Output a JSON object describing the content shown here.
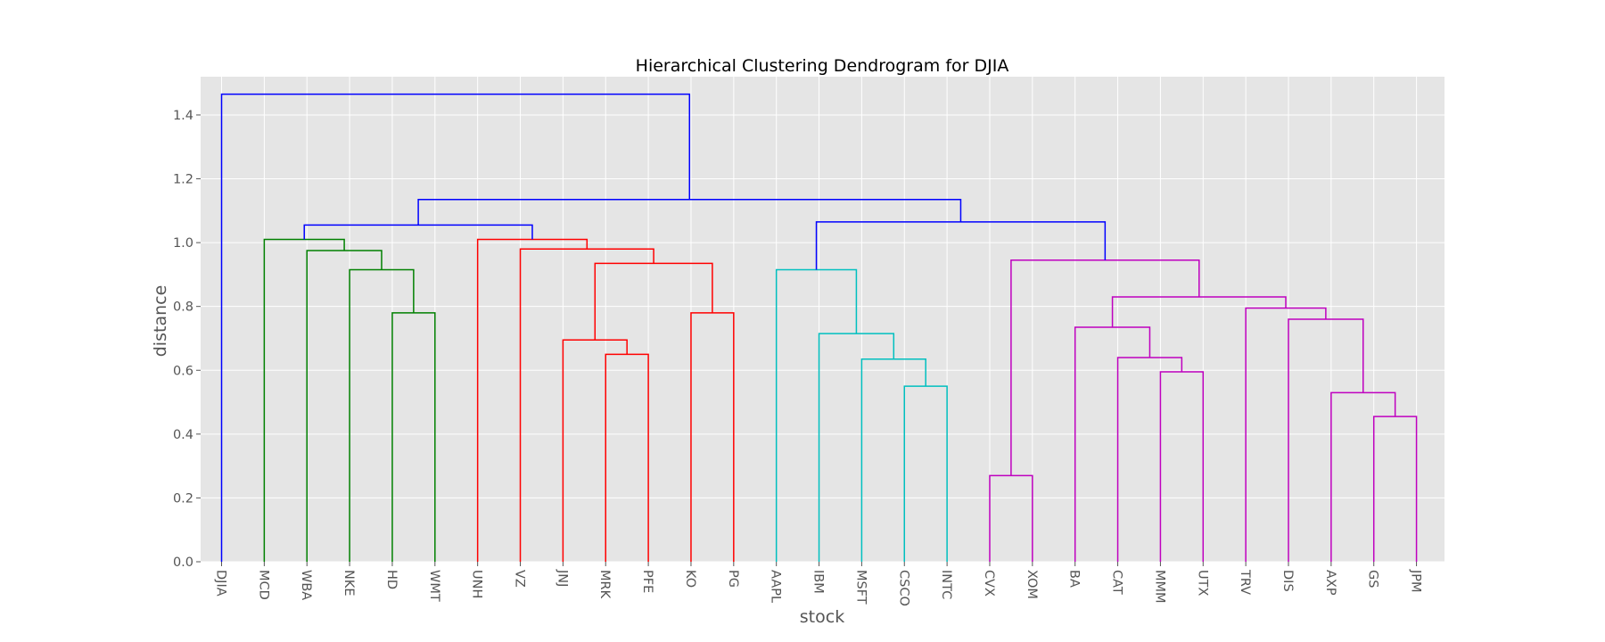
{
  "chart_data": {
    "type": "dendrogram",
    "title": "Hierarchical Clustering Dendrogram for DJIA",
    "xlabel": "stock",
    "ylabel": "distance",
    "ylim": [
      0,
      1.52
    ],
    "yticks": [
      "0.0",
      "0.2",
      "0.4",
      "0.6",
      "0.8",
      "1.0",
      "1.2",
      "1.4"
    ],
    "grid": true,
    "leaves": [
      "DJIA",
      "MCD",
      "WBA",
      "NKE",
      "HD",
      "WMT",
      "UNH",
      "VZ",
      "JNJ",
      "MRK",
      "PFE",
      "KO",
      "PG",
      "AAPL",
      "IBM",
      "MSFT",
      "CSCO",
      "INTC",
      "CVX",
      "XOM",
      "BA",
      "CAT",
      "MMM",
      "UTX",
      "TRV",
      "DIS",
      "AXP",
      "GS",
      "JPM"
    ],
    "colors": {
      "green": "#008000",
      "red": "#ff0000",
      "cyan": "#00bfbf",
      "magenta": "#bf00bf",
      "blue": "#0000ff",
      "plot_background": "#e5e5e5",
      "grid": "#ffffff"
    },
    "merges": [
      {
        "left": "HD",
        "right": "WMT",
        "height": 0.78,
        "color": "green"
      },
      {
        "left": "NKE",
        "right": "HD+WMT",
        "height": 0.915,
        "color": "green"
      },
      {
        "left": "WBA",
        "right": "NKE+HD+WMT",
        "height": 0.975,
        "color": "green"
      },
      {
        "left": "MCD",
        "right": "WBA+NKE+HD+WMT",
        "height": 1.01,
        "color": "green"
      },
      {
        "left": "MRK",
        "right": "PFE",
        "height": 0.65,
        "color": "red"
      },
      {
        "left": "JNJ",
        "right": "MRK+PFE",
        "height": 0.695,
        "color": "red"
      },
      {
        "left": "KO",
        "right": "PG",
        "height": 0.78,
        "color": "red"
      },
      {
        "left": "JNJ+MRK+PFE",
        "right": "KO+PG",
        "height": 0.935,
        "color": "red"
      },
      {
        "left": "VZ",
        "right": "JNJ+MRK+PFE+KO+PG",
        "height": 0.98,
        "color": "red"
      },
      {
        "left": "UNH",
        "right": "VZ+JNJ+MRK+PFE+KO+PG",
        "height": 1.01,
        "color": "red"
      },
      {
        "left": "CSCO",
        "right": "INTC",
        "height": 0.55,
        "color": "cyan"
      },
      {
        "left": "MSFT",
        "right": "CSCO+INTC",
        "height": 0.635,
        "color": "cyan"
      },
      {
        "left": "IBM",
        "right": "MSFT+CSCO+INTC",
        "height": 0.715,
        "color": "cyan"
      },
      {
        "left": "AAPL",
        "right": "IBM+MSFT+CSCO+INTC",
        "height": 0.915,
        "color": "cyan"
      },
      {
        "left": "CVX",
        "right": "XOM",
        "height": 0.27,
        "color": "magenta"
      },
      {
        "left": "MMM",
        "right": "UTX",
        "height": 0.595,
        "color": "magenta"
      },
      {
        "left": "CAT",
        "right": "MMM+UTX",
        "height": 0.64,
        "color": "magenta"
      },
      {
        "left": "BA",
        "right": "CAT+MMM+UTX",
        "height": 0.735,
        "color": "magenta"
      },
      {
        "left": "GS",
        "right": "JPM",
        "height": 0.455,
        "color": "magenta"
      },
      {
        "left": "AXP",
        "right": "GS+JPM",
        "height": 0.53,
        "color": "magenta"
      },
      {
        "left": "DIS",
        "right": "AXP+GS+JPM",
        "height": 0.76,
        "color": "magenta"
      },
      {
        "left": "TRV",
        "right": "DIS+AXP+GS+JPM",
        "height": 0.795,
        "color": "magenta"
      },
      {
        "left": "BA+CAT+MMM+UTX",
        "right": "TRV+DIS+AXP+GS+JPM",
        "height": 0.83,
        "color": "magenta"
      },
      {
        "left": "CVX+XOM",
        "right": "BA..JPM",
        "height": 0.945,
        "color": "magenta"
      },
      {
        "left": "MCD..WMT",
        "right": "UNH..PG",
        "height": 1.055,
        "color": "blue"
      },
      {
        "left": "AAPL..INTC",
        "right": "CVX..JPM",
        "height": 1.065,
        "color": "blue"
      },
      {
        "left": "MCD..PG",
        "right": "AAPL..JPM",
        "height": 1.135,
        "color": "blue"
      },
      {
        "left": "DJIA",
        "right": "MCD..JPM",
        "height": 1.465,
        "color": "blue"
      }
    ]
  }
}
